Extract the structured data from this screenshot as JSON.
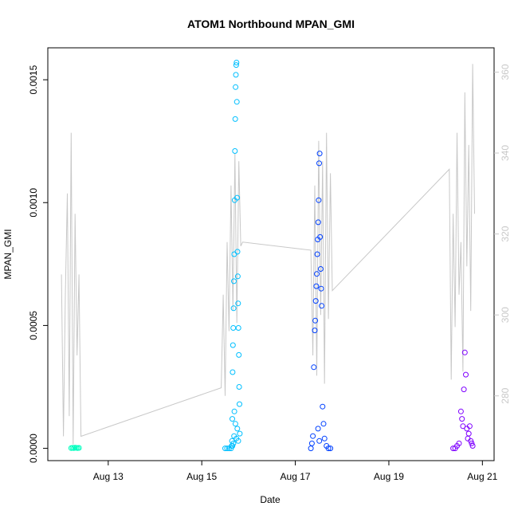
{
  "chart_data": {
    "type": "scatter",
    "title": "ATOM1 Northbound MPAN_GMI",
    "xlabel": "Date",
    "ylabel": "MPAN_GMI",
    "x_axis": {
      "range": [
        "2024-08-11T17:00",
        "2024-08-21T06:00"
      ],
      "ticks": [
        {
          "date": "2024-08-13T00:00",
          "label": "Aug 13"
        },
        {
          "date": "2024-08-15T00:00",
          "label": "Aug 15"
        },
        {
          "date": "2024-08-17T00:00",
          "label": "Aug 17"
        },
        {
          "date": "2024-08-19T00:00",
          "label": "Aug 19"
        },
        {
          "date": "2024-08-21T00:00",
          "label": "Aug 21"
        }
      ]
    },
    "y_axis_left": {
      "range": [
        -5e-05,
        0.00163
      ],
      "ticks": [
        {
          "value": 0.0,
          "label": "0.0000"
        },
        {
          "value": 0.0005,
          "label": "0.0005"
        },
        {
          "value": 0.001,
          "label": "0.0010"
        },
        {
          "value": 0.0015,
          "label": "0.0015"
        }
      ]
    },
    "y_axis_right": {
      "range": [
        264,
        366
      ],
      "ticks": [
        {
          "value": 280,
          "label": "280"
        },
        {
          "value": 300,
          "label": "300"
        },
        {
          "value": 320,
          "label": "320"
        },
        {
          "value": 340,
          "label": "340"
        },
        {
          "value": 360,
          "label": "360"
        }
      ]
    },
    "grid": false,
    "colors": {
      "aug12": "#00ffbf",
      "aug15": "#00bfff",
      "aug17": "#0040ff",
      "aug20": "#7f00ff",
      "secondary_line": "#c8c8c8"
    },
    "series": [
      {
        "color": "#00ffbf",
        "x": [
          "2024-08-12T05:00",
          "2024-08-12T05:40",
          "2024-08-12T06:20",
          "2024-08-12T07:00",
          "2024-08-12T07:40",
          "2024-08-12T08:20",
          "2024-08-12T09:00"
        ],
        "values": [
          1e-06,
          2e-06,
          1e-06,
          3e-06,
          2e-06,
          1e-06,
          2e-06
        ]
      },
      {
        "color": "#00bfff",
        "x": [
          "2024-08-15T12:00",
          "2024-08-15T13:00",
          "2024-08-15T14:00",
          "2024-08-15T15:00",
          "2024-08-15T15:20",
          "2024-08-15T15:30",
          "2024-08-15T15:40",
          "2024-08-15T15:50",
          "2024-08-15T16:00",
          "2024-08-15T16:10",
          "2024-08-15T16:20",
          "2024-08-15T16:30",
          "2024-08-15T16:40",
          "2024-08-15T16:50",
          "2024-08-15T17:00",
          "2024-08-15T17:10",
          "2024-08-15T17:20",
          "2024-08-15T17:30",
          "2024-08-15T17:40",
          "2024-08-15T17:50",
          "2024-08-15T18:00",
          "2024-08-15T18:10",
          "2024-08-15T18:20",
          "2024-08-15T18:30",
          "2024-08-15T18:40",
          "2024-08-15T18:50",
          "2024-08-15T19:00",
          "2024-08-15T19:10",
          "2024-08-15T19:20",
          "2024-08-15T19:30",
          "2024-08-15T16:15",
          "2024-08-15T16:45",
          "2024-08-15T17:15",
          "2024-08-15T17:45",
          "2024-08-15T18:15",
          "2024-08-15T18:45",
          "2024-08-15T15:45",
          "2024-08-15T16:35"
        ],
        "values": [
          0.0,
          0.0,
          0.0,
          0.0,
          1e-05,
          3e-05,
          0.00012,
          0.00031,
          0.00042,
          0.00049,
          0.00057,
          0.00068,
          0.00079,
          0.00101,
          0.00121,
          0.00134,
          0.00147,
          0.00152,
          0.00156,
          0.00157,
          0.00141,
          0.00102,
          0.0008,
          0.0007,
          0.00059,
          0.00049,
          0.00038,
          0.00025,
          0.00018,
          6e-05,
          2e-05,
          0.00015,
          0.0001,
          4e-05,
          8e-05,
          3e-05,
          1e-05,
          5e-05
        ]
      },
      {
        "color": "#0040ff",
        "x": [
          "2024-08-17T08:00",
          "2024-08-17T08:30",
          "2024-08-17T09:00",
          "2024-08-17T09:30",
          "2024-08-17T10:00",
          "2024-08-17T10:15",
          "2024-08-17T10:30",
          "2024-08-17T10:45",
          "2024-08-17T11:00",
          "2024-08-17T11:15",
          "2024-08-17T11:30",
          "2024-08-17T11:45",
          "2024-08-17T12:00",
          "2024-08-17T12:15",
          "2024-08-17T12:30",
          "2024-08-17T12:45",
          "2024-08-17T13:00",
          "2024-08-17T13:15",
          "2024-08-17T13:30",
          "2024-08-17T14:00",
          "2024-08-17T14:30",
          "2024-08-17T15:00",
          "2024-08-17T16:00",
          "2024-08-17T17:00",
          "2024-08-17T18:00",
          "2024-08-17T11:40",
          "2024-08-17T12:20"
        ],
        "values": [
          0.0,
          2e-05,
          5e-05,
          0.00033,
          0.00048,
          0.00052,
          0.0006,
          0.00066,
          0.00071,
          0.00079,
          0.00085,
          0.00092,
          0.00101,
          0.00116,
          0.0012,
          0.00086,
          0.00073,
          0.00065,
          0.00058,
          0.00017,
          0.0001,
          4e-05,
          1e-05,
          0.0,
          0.0,
          8e-05,
          3e-05
        ]
      },
      {
        "color": "#7f00ff",
        "x": [
          "2024-08-20T09:00",
          "2024-08-20T10:00",
          "2024-08-20T11:00",
          "2024-08-20T12:00",
          "2024-08-20T13:00",
          "2024-08-20T13:30",
          "2024-08-20T14:00",
          "2024-08-20T14:30",
          "2024-08-20T15:00",
          "2024-08-20T15:30",
          "2024-08-20T16:00",
          "2024-08-20T16:30",
          "2024-08-20T17:00",
          "2024-08-20T17:30",
          "2024-08-20T18:00",
          "2024-08-20T18:30",
          "2024-08-20T19:00"
        ],
        "values": [
          0.0,
          0.0,
          1e-05,
          2e-05,
          0.00015,
          0.00012,
          9e-05,
          0.00024,
          0.00039,
          0.0003,
          8e-05,
          4e-05,
          6e-05,
          9e-05,
          3e-05,
          2e-05,
          1e-05
        ]
      }
    ],
    "secondary_series": {
      "axis": "right",
      "color": "#c8c8c8",
      "x": [
        "2024-08-12T00:00",
        "2024-08-12T01:00",
        "2024-08-12T02:00",
        "2024-08-12T03:00",
        "2024-08-12T04:00",
        "2024-08-12T05:00",
        "2024-08-12T06:00",
        "2024-08-12T07:00",
        "2024-08-12T08:00",
        "2024-08-12T09:00",
        "2024-08-12T10:00",
        "2024-08-15T10:00",
        "2024-08-15T11:00",
        "2024-08-15T12:00",
        "2024-08-15T13:00",
        "2024-08-15T14:00",
        "2024-08-15T15:00",
        "2024-08-15T16:00",
        "2024-08-15T17:00",
        "2024-08-15T18:00",
        "2024-08-15T19:00",
        "2024-08-15T20:00",
        "2024-08-15T21:00",
        "2024-08-17T08:00",
        "2024-08-17T09:00",
        "2024-08-17T10:00",
        "2024-08-17T11:00",
        "2024-08-17T12:00",
        "2024-08-17T13:00",
        "2024-08-17T14:00",
        "2024-08-17T15:00",
        "2024-08-17T16:00",
        "2024-08-17T17:00",
        "2024-08-17T18:00",
        "2024-08-17T19:00",
        "2024-08-20T07:00",
        "2024-08-20T08:00",
        "2024-08-20T09:00",
        "2024-08-20T10:00",
        "2024-08-20T11:00",
        "2024-08-20T12:00",
        "2024-08-20T13:00",
        "2024-08-20T14:00",
        "2024-08-20T15:00",
        "2024-08-20T16:00",
        "2024-08-20T17:00",
        "2024-08-20T18:00",
        "2024-08-20T19:00",
        "2024-08-20T20:00"
      ],
      "values": [
        310,
        270,
        305,
        330,
        275,
        345,
        268,
        325,
        290,
        310,
        270,
        282,
        305,
        280,
        318,
        296,
        332,
        301,
        340,
        298,
        338,
        317,
        318,
        316,
        290,
        332,
        285,
        343,
        300,
        338,
        283,
        345,
        299,
        335,
        306,
        336,
        284,
        325,
        297,
        345,
        305,
        318,
        286,
        355,
        312,
        342,
        301,
        362,
        325
      ]
    }
  }
}
